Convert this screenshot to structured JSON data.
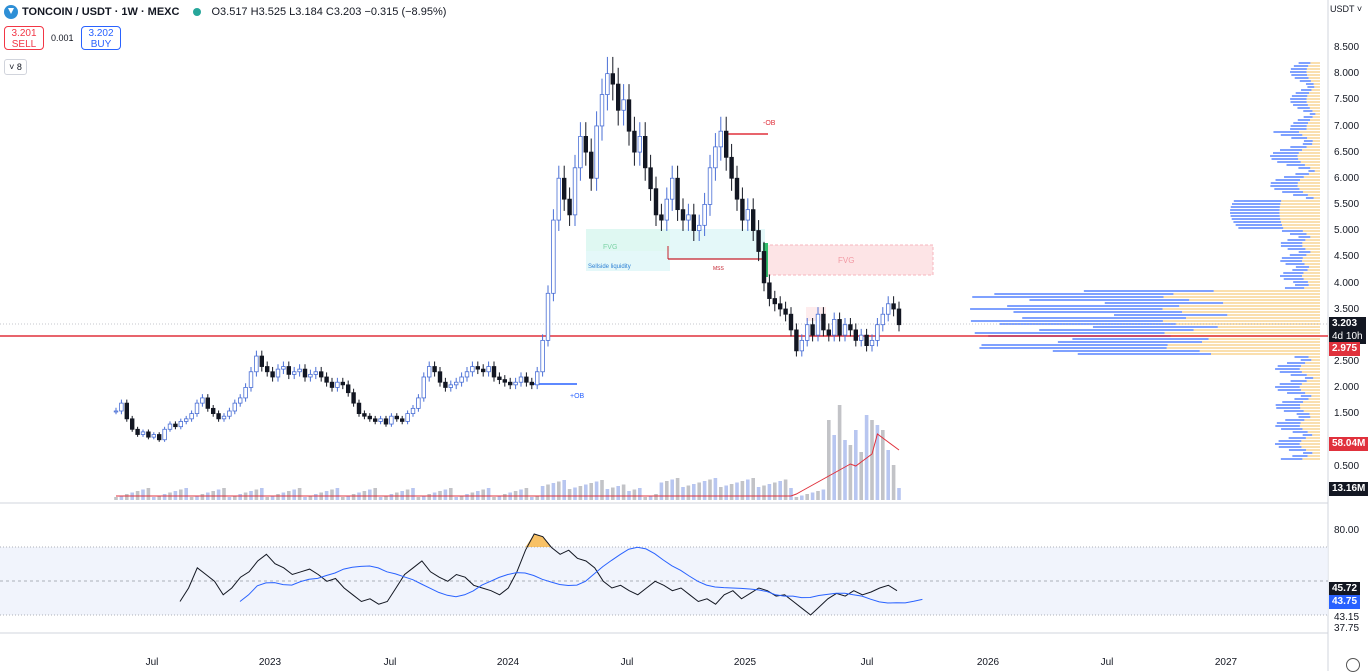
{
  "header": {
    "symbol_title": "TONCOIN / USDT · 1W · MEXC",
    "ohlc": {
      "o": "O3.517",
      "h": "H3.525",
      "l": "L3.184",
      "c": "C3.203",
      "change": "−0.315 (−8.95%)"
    },
    "sell_price": "3.201",
    "sell_label": "SELL",
    "buy_price": "3.202",
    "buy_label": "BUY",
    "spread": "0.001",
    "indicators_count": "8",
    "currency": "USDT"
  },
  "colors": {
    "up": "#4a6fd6",
    "down": "#131722",
    "red_line": "#e0313c",
    "accent": "#2962ff",
    "fvg_red": "#f7b6bd",
    "fvg_green": "#b7efe2"
  },
  "price_axis": {
    "ticks": [
      "8.500",
      "8.000",
      "7.500",
      "7.000",
      "6.500",
      "6.000",
      "5.500",
      "5.000",
      "4.500",
      "4.000",
      "3.500",
      "2.500",
      "2.000",
      "1.500",
      "0.500"
    ],
    "current_price": "3.203",
    "countdown": "4d 10h",
    "line_price": "2.975",
    "volume_ma": "58.04M",
    "volume_last": "13.16M"
  },
  "rsi_axis": {
    "ticks": [
      "80.00",
      "43.15",
      "37.75"
    ],
    "rsi_value": "45.72",
    "rsi_ma": "43.75"
  },
  "time_axis": {
    "ticks": [
      "Jul",
      "2023",
      "Jul",
      "2024",
      "Jul",
      "2025",
      "Jul",
      "2026",
      "Jul",
      "2027"
    ]
  },
  "annotations": {
    "fvg_left": "FVG",
    "fvg_right": "FVG",
    "sellside": "Sellside liquidity",
    "mss": "MSS",
    "ob_bear": "-OB",
    "ob_bull": "+OB"
  },
  "icons": {
    "logo": "toncoin-logo-icon",
    "settings": "settings-gear-icon",
    "chevron": "chevron-down-icon"
  }
}
